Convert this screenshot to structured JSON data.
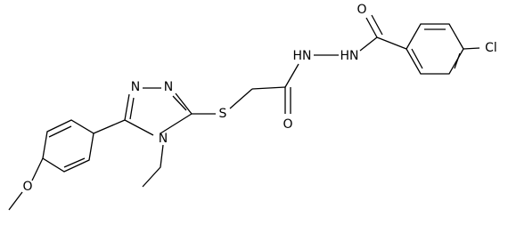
{
  "atoms": [
    "O",
    "HN",
    "HN",
    "Cl",
    "O",
    "S",
    "N",
    "N",
    "N",
    "O"
  ]
}
